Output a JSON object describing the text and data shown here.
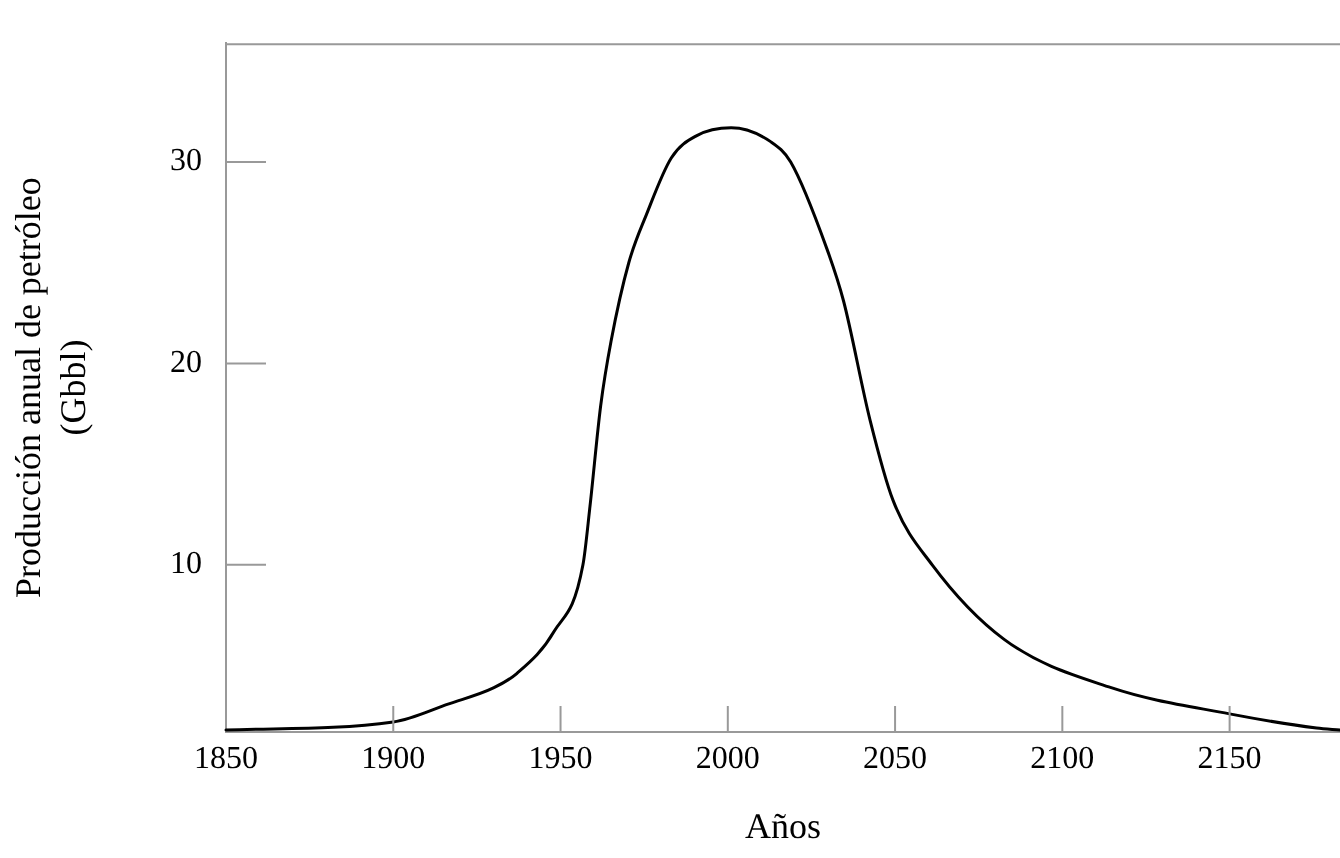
{
  "chart_data": {
    "type": "line",
    "xlabel": "Años",
    "ylabel": "Producción anual de petróleo\n(Gbbl)",
    "x": [
      1850,
      1900,
      1916.6,
      1930.1,
      1936.9,
      1948.1,
      1956.7,
      1958.8,
      1962.0,
      1965.1,
      1970.4,
      1975.7,
      1983.1,
      1990.6,
      2001.0,
      2012.9,
      2018.8,
      2029.6,
      2034.6,
      2042.5,
      2049.4,
      2061.1,
      2082.6,
      2114.6,
      2150,
      2176,
      2183
    ],
    "series": [
      {
        "color": "#000000",
        "values": [
          1.8,
          2.2,
          3.1,
          3.9,
          4.6,
          6.7,
          10,
          12.9,
          17.9,
          21.1,
          25.0,
          27.4,
          30.2,
          31.3,
          31.7,
          31.0,
          30,
          25.7,
          23.1,
          17.2,
          13.2,
          10,
          6.3,
          3.9,
          2.6,
          1.9,
          1.8
        ]
      }
    ],
    "xlim": [
      1850,
      2183
    ],
    "xticks": [
      1850,
      1900,
      1950,
      2000,
      2050,
      2100,
      2150
    ],
    "ylim": [
      1.7,
      35.9
    ],
    "yticks": [
      10,
      20,
      30
    ],
    "grid": false,
    "legend": false,
    "marker": "none",
    "line_style": "solid"
  }
}
